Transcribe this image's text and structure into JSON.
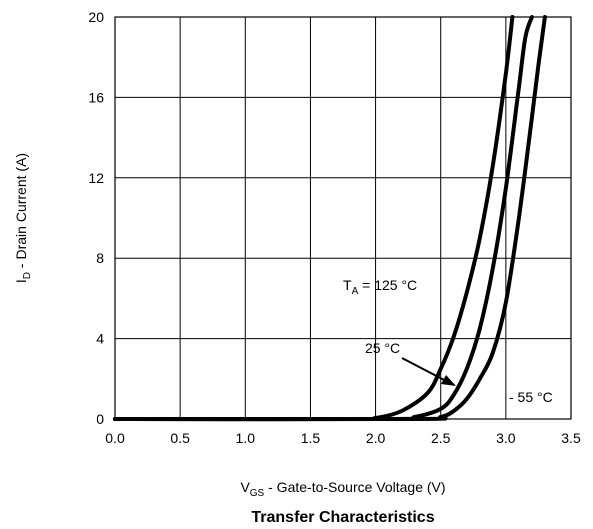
{
  "chart_data": {
    "type": "line",
    "title": "Transfer Characteristics",
    "xlabel": {
      "main": "V",
      "sub": "GS",
      "rest": " - Gate-to-Source Voltage (V)"
    },
    "ylabel": {
      "main": "I",
      "sub": "D",
      "rest": " - Drain Current (A)"
    },
    "xlim": [
      0.0,
      3.5
    ],
    "ylim": [
      0,
      20
    ],
    "xticks": [
      0.0,
      0.5,
      1.0,
      1.5,
      2.0,
      2.5,
      3.0,
      3.5
    ],
    "xtick_labels": [
      "0.0",
      "0.5",
      "1.0",
      "1.5",
      "2.0",
      "2.5",
      "3.0",
      "3.5"
    ],
    "yticks": [
      0,
      4,
      8,
      12,
      16,
      20
    ],
    "ytick_labels": [
      "0",
      "4",
      "8",
      "12",
      "16",
      "20"
    ],
    "grid": true,
    "series": [
      {
        "name": "T_A = 125 °C",
        "x": [
          0.0,
          1.8,
          2.0,
          2.2,
          2.4,
          2.5,
          2.6,
          2.7,
          2.8,
          2.9,
          3.0,
          3.05
        ],
        "y": [
          0,
          0,
          0.05,
          0.4,
          1.3,
          2.5,
          4.1,
          6.3,
          9.0,
          12.6,
          17.2,
          20
        ]
      },
      {
        "name": "25 °C",
        "x": [
          0.0,
          2.1,
          2.3,
          2.5,
          2.6,
          2.7,
          2.8,
          2.9,
          3.0,
          3.1,
          3.15,
          3.2
        ],
        "y": [
          0,
          0,
          0.1,
          0.5,
          1.2,
          2.5,
          4.5,
          7.5,
          11.5,
          16.5,
          19.0,
          20
        ]
      },
      {
        "name": "- 55 °C",
        "x": [
          0.0,
          2.3,
          2.5,
          2.6,
          2.7,
          2.8,
          2.9,
          3.0,
          3.1,
          3.2,
          3.25,
          3.3
        ],
        "y": [
          0,
          0,
          0.1,
          0.4,
          1.0,
          2.0,
          3.3,
          5.8,
          10.0,
          15.0,
          17.6,
          20
        ]
      }
    ],
    "annotations": [
      {
        "main": "T",
        "sub": "A",
        "rest": " = 125 °C"
      },
      {
        "text": "25 °C"
      },
      {
        "text": "- 55 °C"
      }
    ]
  }
}
